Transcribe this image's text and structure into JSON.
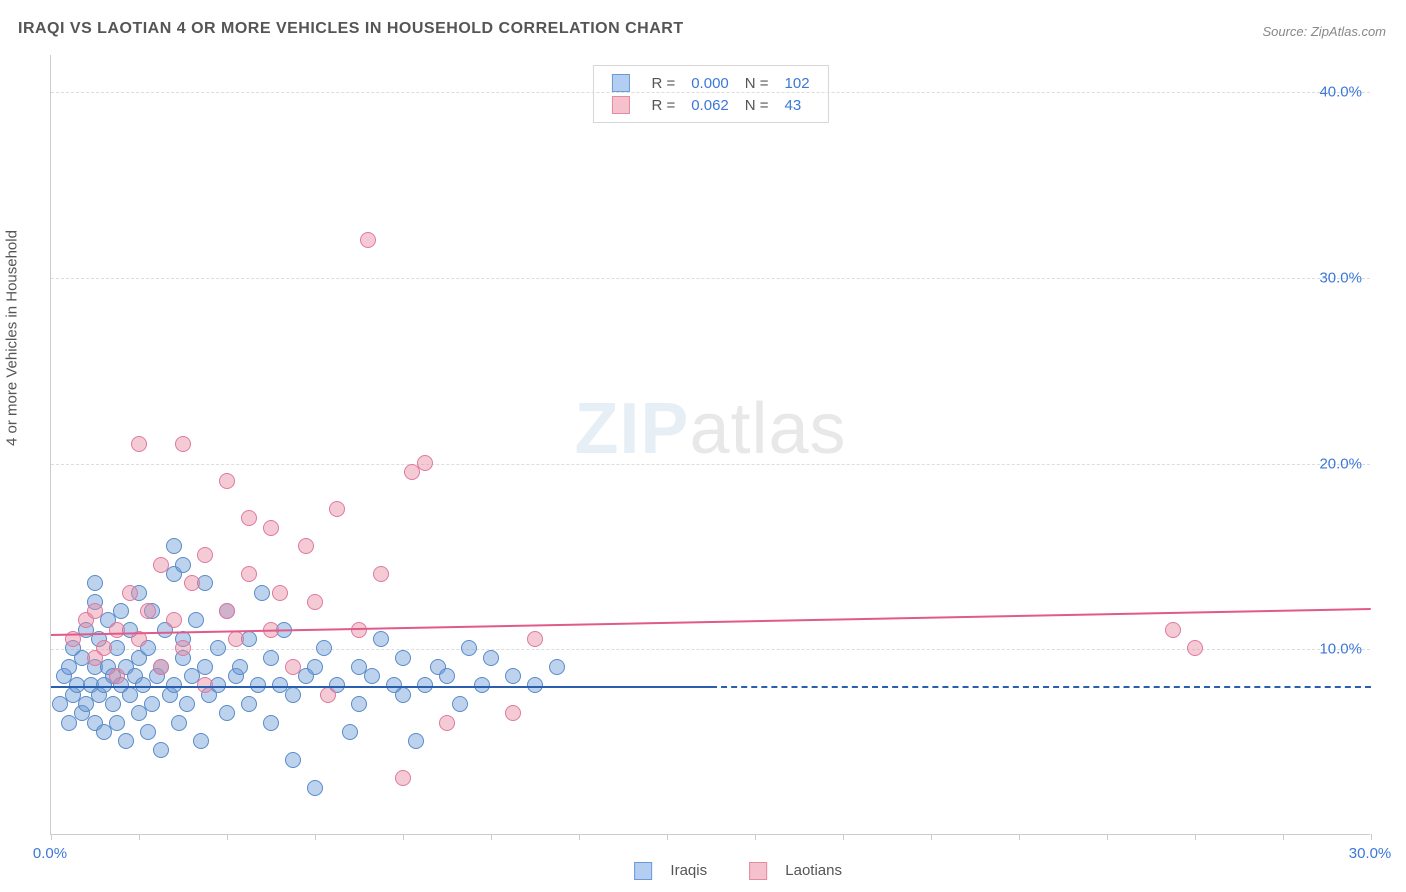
{
  "title": "IRAQI VS LAOTIAN 4 OR MORE VEHICLES IN HOUSEHOLD CORRELATION CHART",
  "source": "Source: ZipAtlas.com",
  "watermark_zip": "ZIP",
  "watermark_atlas": "atlas",
  "chart": {
    "type": "scatter",
    "y_axis_title": "4 or more Vehicles in Household",
    "xlim": [
      0,
      30
    ],
    "ylim": [
      0,
      42
    ],
    "background_color": "#ffffff",
    "grid_color": "#dddddd",
    "axis_color": "#cccccc",
    "y_gridlines": [
      10,
      20,
      30,
      40
    ],
    "y_tick_labels": [
      {
        "v": 10,
        "label": "10.0%"
      },
      {
        "v": 20,
        "label": "20.0%"
      },
      {
        "v": 30,
        "label": "30.0%"
      },
      {
        "v": 40,
        "label": "40.0%"
      }
    ],
    "x_ticks": [
      0,
      2,
      4,
      6,
      8,
      10,
      12,
      14,
      16,
      18,
      20,
      22,
      24,
      26,
      28,
      30
    ],
    "x_tick_labels": [
      {
        "v": 0,
        "label": "0.0%"
      },
      {
        "v": 30,
        "label": "30.0%"
      }
    ],
    "legend_top": {
      "rows": [
        {
          "swatch_fill": "#b3cef0",
          "swatch_border": "#6b9bd6",
          "r_label": "R =",
          "r": "0.000",
          "n_label": "N =",
          "n": "102"
        },
        {
          "swatch_fill": "#f5c1cd",
          "swatch_border": "#e48aa1",
          "r_label": "R =",
          "r": "0.062",
          "n_label": "N =",
          "n": "43"
        }
      ]
    },
    "legend_bottom": {
      "items": [
        {
          "swatch_fill": "#b3cef0",
          "swatch_border": "#6b9bd6",
          "label": "Iraqis"
        },
        {
          "swatch_fill": "#f5c1cd",
          "swatch_border": "#e48aa1",
          "label": "Laotians"
        }
      ]
    },
    "series": [
      {
        "name": "Iraqis",
        "marker_fill": "rgba(107,155,214,0.45)",
        "marker_border": "#5a8bc9",
        "marker_radius": 8,
        "trend_color": "#2a5fb0",
        "trend": {
          "x1": 0,
          "y1": 8.0,
          "x2_solid": 15,
          "y2_solid": 8.0,
          "x2": 30,
          "y2": 8.0
        },
        "points": [
          [
            0.2,
            7.0
          ],
          [
            0.3,
            8.5
          ],
          [
            0.4,
            6.0
          ],
          [
            0.4,
            9.0
          ],
          [
            0.5,
            7.5
          ],
          [
            0.5,
            10.0
          ],
          [
            0.6,
            8.0
          ],
          [
            0.7,
            6.5
          ],
          [
            0.7,
            9.5
          ],
          [
            0.8,
            7.0
          ],
          [
            0.8,
            11.0
          ],
          [
            0.9,
            8.0
          ],
          [
            1.0,
            6.0
          ],
          [
            1.0,
            9.0
          ],
          [
            1.0,
            12.5
          ],
          [
            1.1,
            7.5
          ],
          [
            1.1,
            10.5
          ],
          [
            1.2,
            8.0
          ],
          [
            1.2,
            5.5
          ],
          [
            1.3,
            9.0
          ],
          [
            1.3,
            11.5
          ],
          [
            1.4,
            7.0
          ],
          [
            1.4,
            8.5
          ],
          [
            1.5,
            6.0
          ],
          [
            1.5,
            10.0
          ],
          [
            1.6,
            8.0
          ],
          [
            1.6,
            12.0
          ],
          [
            1.7,
            9.0
          ],
          [
            1.7,
            5.0
          ],
          [
            1.8,
            7.5
          ],
          [
            1.8,
            11.0
          ],
          [
            1.9,
            8.5
          ],
          [
            2.0,
            6.5
          ],
          [
            2.0,
            9.5
          ],
          [
            2.0,
            13.0
          ],
          [
            2.1,
            8.0
          ],
          [
            2.2,
            10.0
          ],
          [
            2.2,
            5.5
          ],
          [
            2.3,
            7.0
          ],
          [
            2.3,
            12.0
          ],
          [
            2.4,
            8.5
          ],
          [
            2.5,
            9.0
          ],
          [
            2.5,
            4.5
          ],
          [
            2.6,
            11.0
          ],
          [
            2.7,
            7.5
          ],
          [
            2.8,
            8.0
          ],
          [
            2.8,
            14.0
          ],
          [
            2.9,
            6.0
          ],
          [
            3.0,
            9.5
          ],
          [
            3.0,
            10.5
          ],
          [
            3.1,
            7.0
          ],
          [
            3.2,
            8.5
          ],
          [
            3.3,
            11.5
          ],
          [
            3.4,
            5.0
          ],
          [
            3.5,
            9.0
          ],
          [
            3.5,
            13.5
          ],
          [
            3.6,
            7.5
          ],
          [
            3.8,
            8.0
          ],
          [
            3.8,
            10.0
          ],
          [
            4.0,
            6.5
          ],
          [
            4.0,
            12.0
          ],
          [
            4.2,
            8.5
          ],
          [
            4.3,
            9.0
          ],
          [
            4.5,
            7.0
          ],
          [
            4.5,
            10.5
          ],
          [
            4.7,
            8.0
          ],
          [
            4.8,
            13.0
          ],
          [
            5.0,
            9.5
          ],
          [
            5.0,
            6.0
          ],
          [
            5.2,
            8.0
          ],
          [
            5.3,
            11.0
          ],
          [
            5.5,
            7.5
          ],
          [
            5.5,
            4.0
          ],
          [
            5.8,
            8.5
          ],
          [
            6.0,
            9.0
          ],
          [
            6.0,
            2.5
          ],
          [
            6.2,
            10.0
          ],
          [
            6.5,
            8.0
          ],
          [
            6.8,
            5.5
          ],
          [
            7.0,
            9.0
          ],
          [
            7.0,
            7.0
          ],
          [
            7.3,
            8.5
          ],
          [
            7.5,
            10.5
          ],
          [
            7.8,
            8.0
          ],
          [
            8.0,
            7.5
          ],
          [
            8.0,
            9.5
          ],
          [
            8.3,
            5.0
          ],
          [
            8.5,
            8.0
          ],
          [
            8.8,
            9.0
          ],
          [
            9.0,
            8.5
          ],
          [
            9.3,
            7.0
          ],
          [
            9.5,
            10.0
          ],
          [
            9.8,
            8.0
          ],
          [
            10.0,
            9.5
          ],
          [
            10.5,
            8.5
          ],
          [
            11.0,
            8.0
          ],
          [
            11.5,
            9.0
          ],
          [
            2.8,
            15.5
          ],
          [
            3.0,
            14.5
          ],
          [
            1.0,
            13.5
          ]
        ]
      },
      {
        "name": "Laotians",
        "marker_fill": "rgba(231,140,161,0.45)",
        "marker_border": "#e078a0",
        "marker_radius": 8,
        "trend_color": "#e05a8a",
        "trend": {
          "x1": 0,
          "y1": 10.8,
          "x2_solid": 30,
          "y2_solid": 12.2,
          "x2": 30,
          "y2": 12.2
        },
        "points": [
          [
            0.5,
            10.5
          ],
          [
            0.8,
            11.5
          ],
          [
            1.0,
            9.5
          ],
          [
            1.0,
            12.0
          ],
          [
            1.2,
            10.0
          ],
          [
            1.5,
            11.0
          ],
          [
            1.5,
            8.5
          ],
          [
            1.8,
            13.0
          ],
          [
            2.0,
            10.5
          ],
          [
            2.0,
            21.0
          ],
          [
            2.2,
            12.0
          ],
          [
            2.5,
            9.0
          ],
          [
            2.5,
            14.5
          ],
          [
            2.8,
            11.5
          ],
          [
            3.0,
            10.0
          ],
          [
            3.0,
            21.0
          ],
          [
            3.2,
            13.5
          ],
          [
            3.5,
            8.0
          ],
          [
            3.5,
            15.0
          ],
          [
            4.0,
            12.0
          ],
          [
            4.0,
            19.0
          ],
          [
            4.2,
            10.5
          ],
          [
            4.5,
            14.0
          ],
          [
            4.5,
            17.0
          ],
          [
            5.0,
            11.0
          ],
          [
            5.0,
            16.5
          ],
          [
            5.2,
            13.0
          ],
          [
            5.5,
            9.0
          ],
          [
            5.8,
            15.5
          ],
          [
            6.0,
            12.5
          ],
          [
            6.3,
            7.5
          ],
          [
            6.5,
            17.5
          ],
          [
            7.0,
            11.0
          ],
          [
            7.2,
            32.0
          ],
          [
            7.5,
            14.0
          ],
          [
            8.0,
            3.0
          ],
          [
            8.2,
            19.5
          ],
          [
            8.5,
            20.0
          ],
          [
            9.0,
            6.0
          ],
          [
            10.5,
            6.5
          ],
          [
            11.0,
            10.5
          ],
          [
            25.5,
            11.0
          ],
          [
            26.0,
            10.0
          ]
        ]
      }
    ]
  }
}
